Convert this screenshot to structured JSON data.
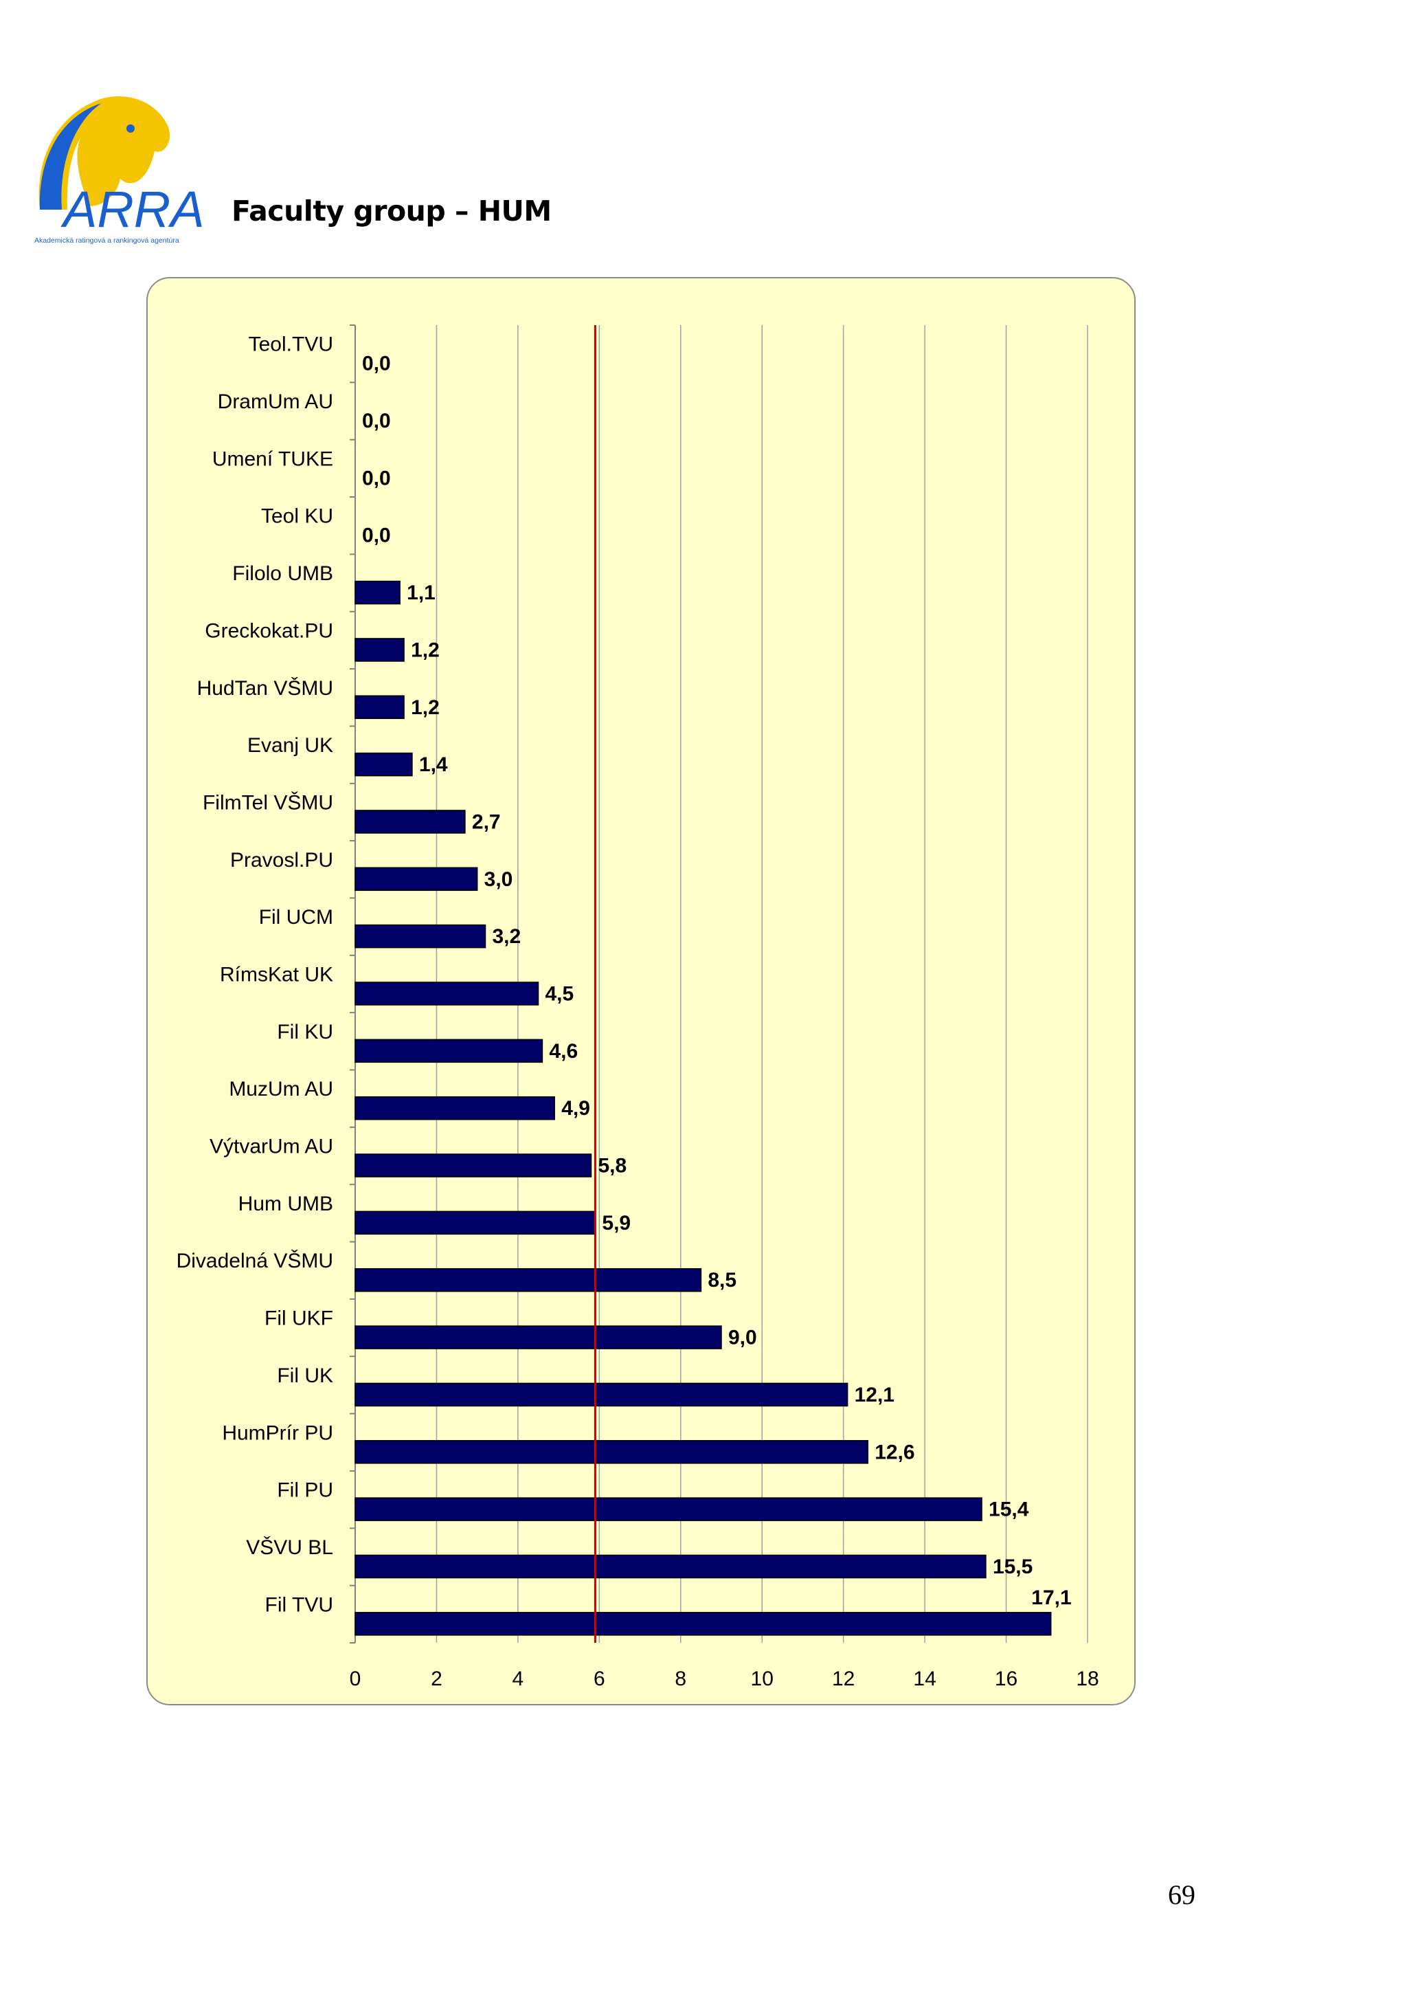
{
  "header": {
    "logo_text": "ARRA",
    "logo_subtitle": "Akademická ratingová a rankingová agentúra",
    "title": "Faculty group – HUM"
  },
  "colors": {
    "bar": "#000066",
    "reference_line": "#cc0000",
    "panel_background": "#ffffcc",
    "logo_blue": "#1a5fcf",
    "logo_yellow": "#f5c400"
  },
  "chart_data": {
    "type": "bar",
    "orientation": "horizontal",
    "categories": [
      "Teol.TVU",
      "DramUm AU",
      "Umení TUKE",
      "Teol KU",
      "Filolo UMB",
      "Greckokat.PU",
      "HudTan VŠMU",
      "Evanj UK",
      "FilmTel VŠMU",
      "Pravosl.PU",
      "Fil UCM",
      "RímsKat UK",
      "Fil KU",
      "MuzUm AU",
      "VýtvarUm AU",
      "Hum UMB",
      "Divadelná VŠMU",
      "Fil UKF",
      "Fil UK",
      "HumPrír PU",
      "Fil PU",
      "VŠVU BL",
      "Fil TVU"
    ],
    "values": [
      0.0,
      0.0,
      0.0,
      0.0,
      1.1,
      1.2,
      1.2,
      1.4,
      2.7,
      3.0,
      3.2,
      4.5,
      4.6,
      4.9,
      5.8,
      5.9,
      8.5,
      9.0,
      12.1,
      12.6,
      15.4,
      15.5,
      17.1
    ],
    "value_labels": [
      "0,0",
      "0,0",
      "0,0",
      "0,0",
      "1,1",
      "1,2",
      "1,2",
      "1,4",
      "2,7",
      "3,0",
      "3,2",
      "4,5",
      "4,6",
      "4,9",
      "5,8",
      "5,9",
      "8,5",
      "9,0",
      "12,1",
      "12,6",
      "15,4",
      "15,5",
      "17,1"
    ],
    "xlim": [
      0,
      18
    ],
    "xticks": [
      "0",
      "2",
      "4",
      "6",
      "8",
      "10",
      "12",
      "14",
      "16",
      "18"
    ],
    "reference_line": 5.9,
    "grid": true,
    "title": "",
    "xlabel": "",
    "ylabel": ""
  },
  "page": {
    "number": "69"
  }
}
